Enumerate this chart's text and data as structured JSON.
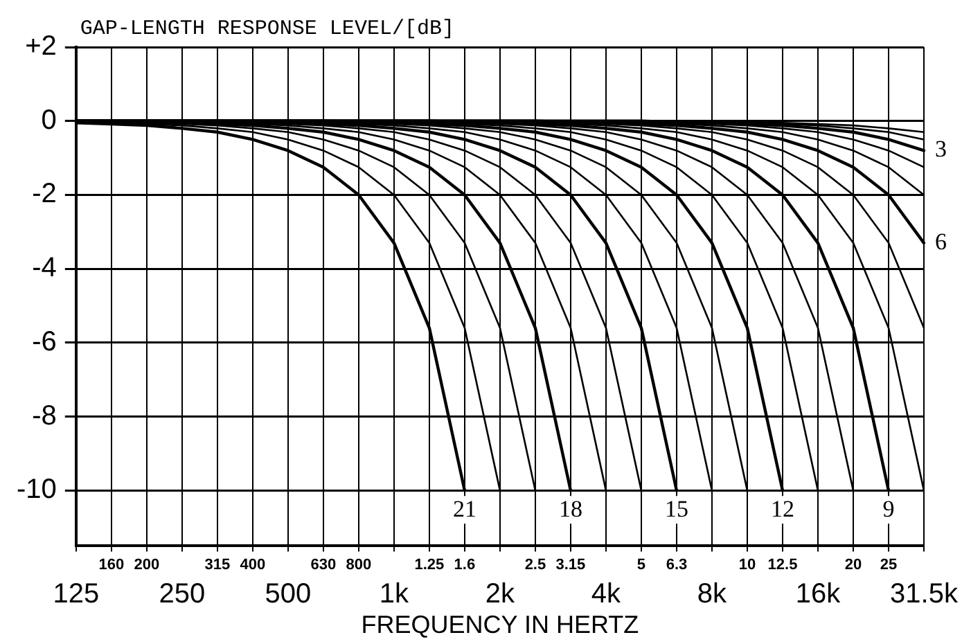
{
  "chart_data": {
    "type": "line",
    "ylabel": "GAP-LENGTH RESPONSE LEVEL/[dB]",
    "xlabel": "FREQUENCY IN HERTZ",
    "grid": true,
    "legend": false,
    "marker": "none",
    "categories": [
      "125",
      "160",
      "200",
      "250",
      "315",
      "400",
      "500",
      "630",
      "800",
      "1k",
      "1.25",
      "1.6",
      "2k",
      "2.5",
      "3.15",
      "4k",
      "5",
      "6.3",
      "8k",
      "10",
      "12.5",
      "16k",
      "20",
      "25",
      "31.5k"
    ],
    "ylim": [
      -11.5,
      2
    ],
    "yticks": [
      {
        "value": 2,
        "label": "+2"
      },
      0,
      -2,
      -4,
      -6,
      -8,
      -10
    ],
    "series": [
      {
        "color": "#000000",
        "values": [
          0,
          0,
          0,
          0,
          0,
          0,
          0,
          0,
          0,
          0,
          0,
          0,
          0,
          0,
          0,
          0,
          0,
          0,
          0,
          -0.03,
          -0.05,
          -0.08,
          -0.12,
          -0.2,
          -0.3
        ]
      },
      {
        "color": "#000000",
        "values": [
          0,
          0,
          0,
          0,
          0,
          0,
          0,
          0,
          0,
          0,
          0,
          0,
          0,
          0,
          0,
          0,
          0,
          0,
          -0.03,
          -0.05,
          -0.08,
          -0.12,
          -0.2,
          -0.3,
          -0.5
        ]
      },
      {
        "name": "3",
        "color": "#000000",
        "values": [
          0,
          0,
          0,
          0,
          0,
          0,
          0,
          0,
          0,
          0,
          0,
          0,
          0,
          0,
          0,
          0,
          0,
          -0.03,
          -0.05,
          -0.08,
          -0.12,
          -0.2,
          -0.3,
          -0.5,
          -0.8
        ]
      },
      {
        "color": "#000000",
        "values": [
          0,
          0,
          0,
          0,
          0,
          0,
          0,
          0,
          0,
          0,
          0,
          0,
          0,
          0,
          0,
          0,
          -0.03,
          -0.05,
          -0.08,
          -0.12,
          -0.2,
          -0.3,
          -0.5,
          -0.8,
          -1.25
        ]
      },
      {
        "color": "#000000",
        "values": [
          0,
          0,
          0,
          0,
          0,
          0,
          0,
          0,
          0,
          0,
          0,
          0,
          0,
          0,
          0,
          -0.03,
          -0.05,
          -0.08,
          -0.12,
          -0.2,
          -0.3,
          -0.5,
          -0.8,
          -1.25,
          -2
        ]
      },
      {
        "name": "6",
        "color": "#000000",
        "values": [
          0,
          0,
          0,
          0,
          0,
          0,
          0,
          0,
          0,
          0,
          0,
          0,
          0,
          0,
          -0.03,
          -0.05,
          -0.08,
          -0.12,
          -0.2,
          -0.3,
          -0.5,
          -0.8,
          -1.25,
          -2,
          -3.3
        ]
      },
      {
        "color": "#000000",
        "values": [
          0,
          0,
          0,
          0,
          0,
          0,
          0,
          0,
          0,
          0,
          0,
          0,
          0,
          -0.03,
          -0.05,
          -0.08,
          -0.12,
          -0.2,
          -0.3,
          -0.5,
          -0.8,
          -1.25,
          -2,
          -3.3,
          -5.6
        ]
      },
      {
        "color": "#000000",
        "values": [
          0,
          0,
          0,
          0,
          0,
          0,
          0,
          0,
          0,
          0,
          0,
          0,
          -0.03,
          -0.05,
          -0.08,
          -0.12,
          -0.2,
          -0.3,
          -0.5,
          -0.8,
          -1.25,
          -2,
          -3.3,
          -5.6,
          -10
        ]
      },
      {
        "name": "9",
        "color": "#000000",
        "values": [
          0,
          0,
          0,
          0,
          0,
          0,
          0,
          0,
          0,
          0,
          0,
          -0.03,
          -0.05,
          -0.08,
          -0.12,
          -0.2,
          -0.3,
          -0.5,
          -0.8,
          -1.25,
          -2,
          -3.3,
          -5.6,
          -10,
          null
        ]
      },
      {
        "color": "#000000",
        "values": [
          0,
          0,
          0,
          0,
          0,
          0,
          0,
          0,
          0,
          0,
          -0.03,
          -0.05,
          -0.08,
          -0.12,
          -0.2,
          -0.3,
          -0.5,
          -0.8,
          -1.25,
          -2,
          -3.3,
          -5.6,
          -10,
          null,
          null
        ]
      },
      {
        "color": "#000000",
        "values": [
          0,
          0,
          0,
          0,
          0,
          0,
          0,
          0,
          0,
          -0.03,
          -0.05,
          -0.08,
          -0.12,
          -0.2,
          -0.3,
          -0.5,
          -0.8,
          -1.25,
          -2,
          -3.3,
          -5.6,
          -10,
          null,
          null,
          null
        ]
      },
      {
        "name": "12",
        "color": "#000000",
        "values": [
          0,
          0,
          0,
          0,
          0,
          0,
          0,
          0,
          -0.03,
          -0.05,
          -0.08,
          -0.12,
          -0.2,
          -0.3,
          -0.5,
          -0.8,
          -1.25,
          -2,
          -3.3,
          -5.6,
          -10,
          null,
          null,
          null,
          null
        ]
      },
      {
        "color": "#000000",
        "values": [
          0,
          0,
          0,
          0,
          0,
          0,
          0,
          -0.03,
          -0.05,
          -0.08,
          -0.12,
          -0.2,
          -0.3,
          -0.5,
          -0.8,
          -1.25,
          -2,
          -3.3,
          -5.6,
          -10,
          null,
          null,
          null,
          null,
          null
        ]
      },
      {
        "color": "#000000",
        "values": [
          0,
          0,
          0,
          0,
          0,
          0,
          -0.03,
          -0.05,
          -0.08,
          -0.12,
          -0.2,
          -0.3,
          -0.5,
          -0.8,
          -1.25,
          -2,
          -3.3,
          -5.6,
          -10,
          null,
          null,
          null,
          null,
          null,
          null
        ]
      },
      {
        "name": "15",
        "color": "#000000",
        "values": [
          0,
          0,
          0,
          0,
          0,
          -0.03,
          -0.05,
          -0.08,
          -0.12,
          -0.2,
          -0.3,
          -0.5,
          -0.8,
          -1.25,
          -2,
          -3.3,
          -5.6,
          -10,
          null,
          null,
          null,
          null,
          null,
          null,
          null
        ]
      },
      {
        "color": "#000000",
        "values": [
          0,
          0,
          0,
          0,
          -0.03,
          -0.05,
          -0.08,
          -0.12,
          -0.2,
          -0.3,
          -0.5,
          -0.8,
          -1.25,
          -2,
          -3.3,
          -5.6,
          -10,
          null,
          null,
          null,
          null,
          null,
          null,
          null,
          null
        ]
      },
      {
        "color": "#000000",
        "values": [
          0,
          0,
          0,
          -0.03,
          -0.05,
          -0.08,
          -0.12,
          -0.2,
          -0.3,
          -0.5,
          -0.8,
          -1.25,
          -2,
          -3.3,
          -5.6,
          -10,
          null,
          null,
          null,
          null,
          null,
          null,
          null,
          null,
          null
        ]
      },
      {
        "name": "18",
        "color": "#000000",
        "values": [
          0,
          0,
          -0.03,
          -0.05,
          -0.08,
          -0.12,
          -0.2,
          -0.3,
          -0.5,
          -0.8,
          -1.25,
          -2,
          -3.3,
          -5.6,
          -10,
          null,
          null,
          null,
          null,
          null,
          null,
          null,
          null,
          null,
          null
        ]
      },
      {
        "color": "#000000",
        "values": [
          0,
          -0.03,
          -0.05,
          -0.08,
          -0.12,
          -0.2,
          -0.3,
          -0.5,
          -0.8,
          -1.25,
          -2,
          -3.3,
          -5.6,
          -10,
          null,
          null,
          null,
          null,
          null,
          null,
          null,
          null,
          null,
          null,
          null
        ]
      },
      {
        "color": "#000000",
        "values": [
          -0.03,
          -0.05,
          -0.08,
          -0.12,
          -0.2,
          -0.3,
          -0.5,
          -0.8,
          -1.25,
          -2,
          -3.3,
          -5.6,
          -10,
          null,
          null,
          null,
          null,
          null,
          null,
          null,
          null,
          null,
          null,
          null,
          null
        ]
      },
      {
        "name": "21",
        "color": "#000000",
        "values": [
          -0.05,
          -0.08,
          -0.12,
          -0.2,
          -0.3,
          -0.5,
          -0.8,
          -1.25,
          -2,
          -3.3,
          -5.6,
          -10,
          null,
          null,
          null,
          null,
          null,
          null,
          null,
          null,
          null,
          null,
          null,
          null,
          null
        ]
      }
    ]
  }
}
